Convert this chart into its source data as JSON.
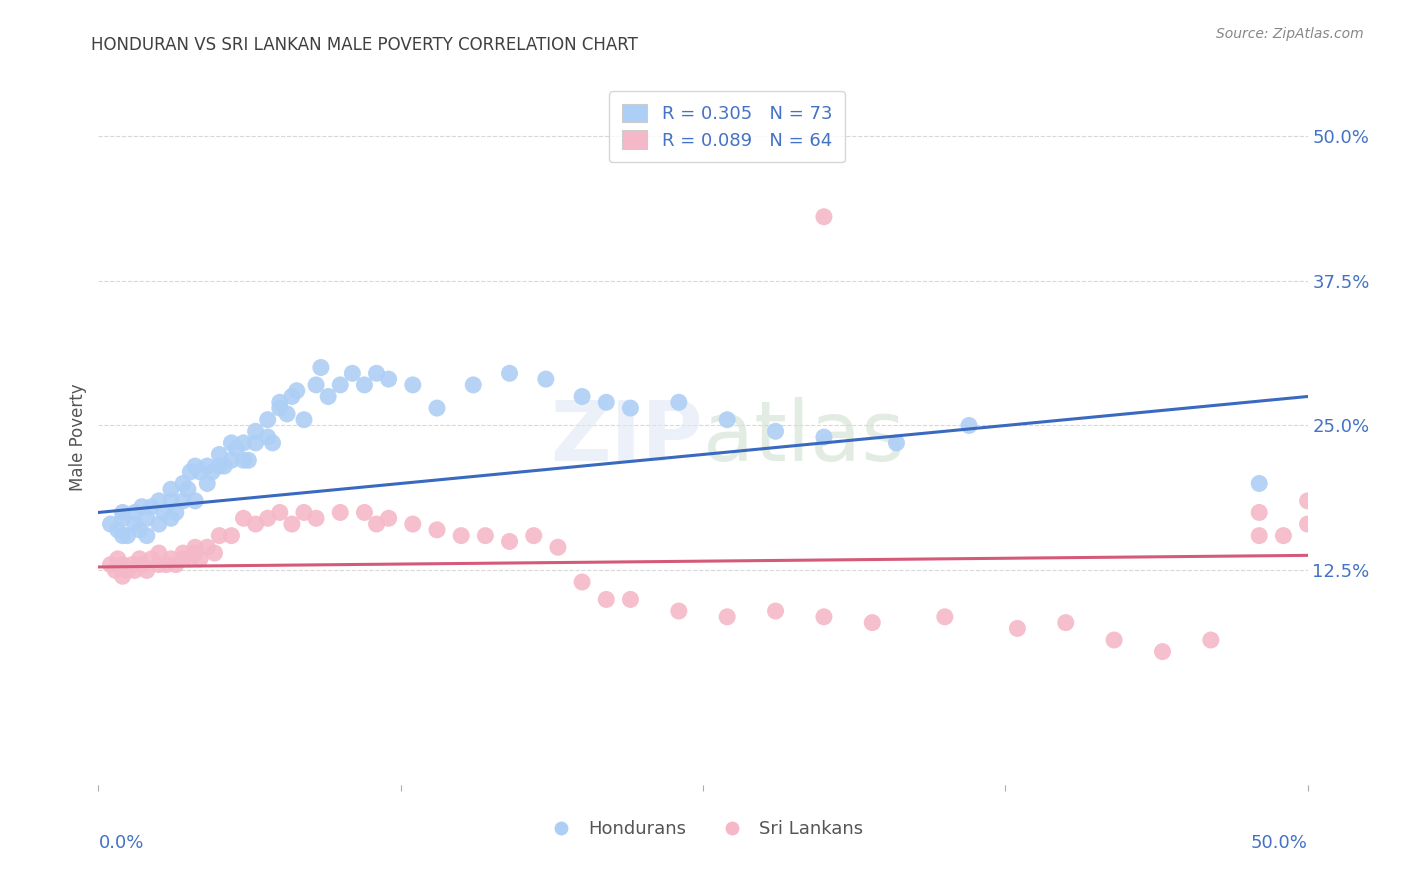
{
  "title": "HONDURAN VS SRI LANKAN MALE POVERTY CORRELATION CHART",
  "source": "Source: ZipAtlas.com",
  "ylabel": "Male Poverty",
  "ytick_labels": [
    "12.5%",
    "25.0%",
    "37.5%",
    "50.0%"
  ],
  "ytick_values": [
    0.125,
    0.25,
    0.375,
    0.5
  ],
  "xlim": [
    0.0,
    0.5
  ],
  "ylim": [
    -0.06,
    0.54
  ],
  "legend_entries": [
    {
      "label": "R = 0.305   N = 73",
      "color": "#aecff5"
    },
    {
      "label": "R = 0.089   N = 64",
      "color": "#f5b8c8"
    }
  ],
  "legend_bottom": [
    "Hondurans",
    "Sri Lankans"
  ],
  "honduran_color": "#aecff5",
  "srilanka_color": "#f5b8c8",
  "trendline_honduran_color": "#3a6abf",
  "trendline_srilanka_color": "#d45a7a",
  "background_color": "#ffffff",
  "grid_color": "#d8d8d8",
  "title_color": "#404040",
  "axis_label_color": "#4472c4",
  "legend_text_color_RN": "#4472c4",
  "honduran_x": [
    0.005,
    0.008,
    0.01,
    0.01,
    0.01,
    0.012,
    0.015,
    0.015,
    0.017,
    0.018,
    0.02,
    0.02,
    0.022,
    0.025,
    0.025,
    0.027,
    0.03,
    0.03,
    0.03,
    0.032,
    0.035,
    0.035,
    0.037,
    0.038,
    0.04,
    0.04,
    0.042,
    0.045,
    0.045,
    0.047,
    0.05,
    0.05,
    0.052,
    0.055,
    0.055,
    0.057,
    0.06,
    0.06,
    0.062,
    0.065,
    0.065,
    0.07,
    0.07,
    0.072,
    0.075,
    0.075,
    0.078,
    0.08,
    0.082,
    0.085,
    0.09,
    0.092,
    0.095,
    0.1,
    0.105,
    0.11,
    0.115,
    0.12,
    0.13,
    0.14,
    0.155,
    0.17,
    0.185,
    0.2,
    0.21,
    0.22,
    0.24,
    0.26,
    0.28,
    0.3,
    0.33,
    0.36,
    0.48
  ],
  "honduran_y": [
    0.165,
    0.16,
    0.155,
    0.17,
    0.175,
    0.155,
    0.165,
    0.175,
    0.16,
    0.18,
    0.155,
    0.17,
    0.18,
    0.165,
    0.185,
    0.175,
    0.17,
    0.185,
    0.195,
    0.175,
    0.185,
    0.2,
    0.195,
    0.21,
    0.185,
    0.215,
    0.21,
    0.2,
    0.215,
    0.21,
    0.215,
    0.225,
    0.215,
    0.22,
    0.235,
    0.23,
    0.22,
    0.235,
    0.22,
    0.235,
    0.245,
    0.24,
    0.255,
    0.235,
    0.265,
    0.27,
    0.26,
    0.275,
    0.28,
    0.255,
    0.285,
    0.3,
    0.275,
    0.285,
    0.295,
    0.285,
    0.295,
    0.29,
    0.285,
    0.265,
    0.285,
    0.295,
    0.29,
    0.275,
    0.27,
    0.265,
    0.27,
    0.255,
    0.245,
    0.24,
    0.235,
    0.25,
    0.2
  ],
  "srilanka_x": [
    0.005,
    0.007,
    0.008,
    0.01,
    0.01,
    0.012,
    0.014,
    0.015,
    0.017,
    0.018,
    0.02,
    0.022,
    0.025,
    0.025,
    0.028,
    0.03,
    0.032,
    0.035,
    0.035,
    0.038,
    0.04,
    0.04,
    0.042,
    0.045,
    0.048,
    0.05,
    0.055,
    0.06,
    0.065,
    0.07,
    0.075,
    0.08,
    0.085,
    0.09,
    0.1,
    0.11,
    0.115,
    0.12,
    0.13,
    0.14,
    0.15,
    0.16,
    0.17,
    0.18,
    0.19,
    0.2,
    0.21,
    0.22,
    0.24,
    0.26,
    0.28,
    0.3,
    0.32,
    0.35,
    0.38,
    0.4,
    0.42,
    0.44,
    0.46,
    0.48,
    0.48,
    0.49,
    0.5,
    0.5
  ],
  "srilanka_y": [
    0.13,
    0.125,
    0.135,
    0.12,
    0.13,
    0.125,
    0.13,
    0.125,
    0.135,
    0.13,
    0.125,
    0.135,
    0.13,
    0.14,
    0.13,
    0.135,
    0.13,
    0.135,
    0.14,
    0.135,
    0.14,
    0.145,
    0.135,
    0.145,
    0.14,
    0.155,
    0.155,
    0.17,
    0.165,
    0.17,
    0.175,
    0.165,
    0.175,
    0.17,
    0.175,
    0.175,
    0.165,
    0.17,
    0.165,
    0.16,
    0.155,
    0.155,
    0.15,
    0.155,
    0.145,
    0.115,
    0.1,
    0.1,
    0.09,
    0.085,
    0.09,
    0.085,
    0.08,
    0.085,
    0.075,
    0.08,
    0.065,
    0.055,
    0.065,
    0.175,
    0.155,
    0.155,
    0.165,
    0.185
  ],
  "srilanka_outlier_x": [
    0.3
  ],
  "srilanka_outlier_y": [
    0.43
  ]
}
